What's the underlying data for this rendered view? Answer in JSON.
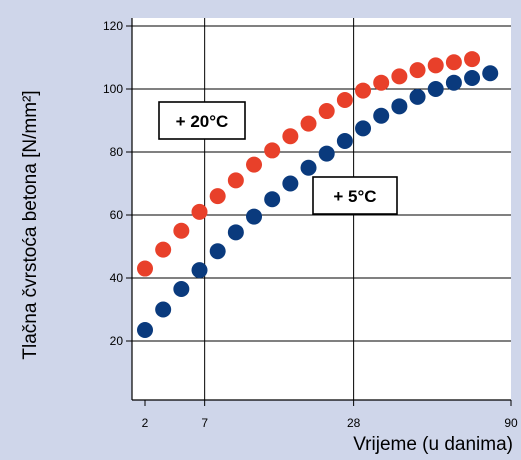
{
  "chart_data": {
    "type": "scatter",
    "ylabel": "Tlačna čvrstoća betona [N/mm²]",
    "xlabel": "Vrijeme (u danima)",
    "ylim": [
      0,
      120
    ],
    "yticks": [
      20,
      40,
      60,
      80,
      100,
      120
    ],
    "xticks": [
      {
        "label": "2",
        "t": 0
      },
      {
        "label": "7",
        "t": 0.163
      },
      {
        "label": "28",
        "t": 0.57
      },
      {
        "label": "90",
        "t": 1
      }
    ],
    "grid": true,
    "series": [
      {
        "name": "+ 20°C",
        "color": "#e8402a",
        "values": [
          43,
          49,
          55,
          61,
          66,
          71,
          76,
          80.5,
          85,
          89,
          93,
          96.5,
          99.5,
          102,
          104,
          106,
          107.5,
          108.5,
          109.5
        ]
      },
      {
        "name": "+ 5°C",
        "color": "#0a3a7d",
        "values": [
          23.5,
          30,
          36.5,
          42.5,
          48.5,
          54.5,
          59.5,
          65,
          70,
          75,
          79.5,
          83.5,
          87.5,
          91.5,
          94.5,
          97.5,
          100,
          102,
          103.5,
          105
        ]
      }
    ]
  }
}
